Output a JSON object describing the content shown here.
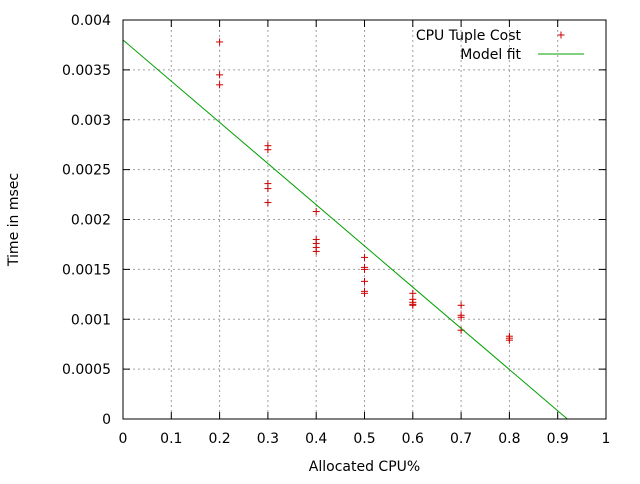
{
  "chart_data": {
    "type": "scatter",
    "xlabel": "Allocated CPU%",
    "ylabel": "Time in msec",
    "xlim": [
      0,
      1
    ],
    "ylim": [
      0,
      0.004
    ],
    "x_ticks": [
      0,
      0.1,
      0.2,
      0.3,
      0.4,
      0.5,
      0.6,
      0.7,
      0.8,
      0.9,
      1
    ],
    "x_tick_labels": [
      "0",
      "0.1",
      "0.2",
      "0.3",
      "0.4",
      "0.5",
      "0.6",
      "0.7",
      "0.8",
      "0.9",
      "1"
    ],
    "y_ticks": [
      0,
      0.0005,
      0.001,
      0.0015,
      0.002,
      0.0025,
      0.003,
      0.0035,
      0.004
    ],
    "y_tick_labels": [
      "0",
      "0.0005",
      "0.001",
      "0.0015",
      "0.002",
      "0.0025",
      "0.003",
      "0.0035",
      "0.004"
    ],
    "grid": true,
    "legend_position": "top-right",
    "series": [
      {
        "name": "CPU Tuple Cost",
        "kind": "points",
        "marker": "plus",
        "color": "#cc0000",
        "points": [
          [
            0.2,
            0.00378
          ],
          [
            0.2,
            0.00345
          ],
          [
            0.2,
            0.00335
          ],
          [
            0.3,
            0.00274
          ],
          [
            0.3,
            0.0027
          ],
          [
            0.3,
            0.00236
          ],
          [
            0.3,
            0.00231
          ],
          [
            0.3,
            0.00217
          ],
          [
            0.4,
            0.00208
          ],
          [
            0.4,
            0.0018
          ],
          [
            0.4,
            0.00176
          ],
          [
            0.4,
            0.00172
          ],
          [
            0.4,
            0.00168
          ],
          [
            0.5,
            0.00162
          ],
          [
            0.5,
            0.00152
          ],
          [
            0.5,
            0.0015
          ],
          [
            0.5,
            0.00138
          ],
          [
            0.5,
            0.00128
          ],
          [
            0.5,
            0.00126
          ],
          [
            0.6,
            0.00126
          ],
          [
            0.6,
            0.0012
          ],
          [
            0.6,
            0.00117
          ],
          [
            0.6,
            0.00115
          ],
          [
            0.6,
            0.00114
          ],
          [
            0.7,
            0.00114
          ],
          [
            0.7,
            0.00104
          ],
          [
            0.7,
            0.00102
          ],
          [
            0.7,
            0.00089
          ],
          [
            0.8,
            0.00083
          ],
          [
            0.8,
            0.00081
          ],
          [
            0.8,
            0.00079
          ]
        ]
      },
      {
        "name": "Model fit",
        "kind": "line",
        "color": "#00a000",
        "points": [
          [
            0,
            0.0038
          ],
          [
            0.92,
            0
          ]
        ]
      }
    ]
  }
}
